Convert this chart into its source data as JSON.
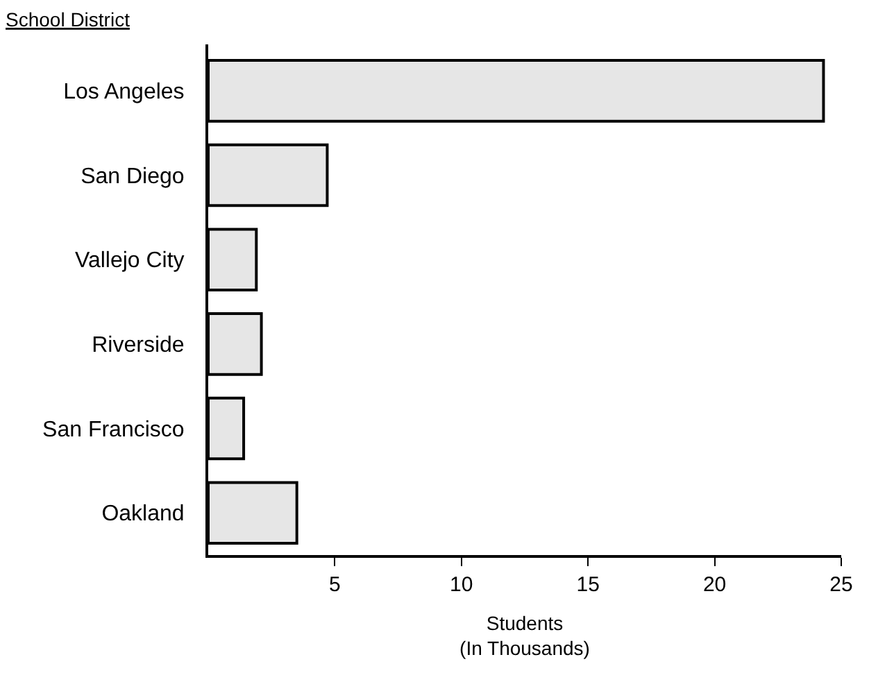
{
  "chart_data": {
    "type": "bar",
    "orientation": "horizontal",
    "ylabel": "School District",
    "xlabel": "Students\n(In Thousands)",
    "categories": [
      "Los Angeles",
      "San Diego",
      "Vallejo City",
      "Riverside",
      "San Francisco",
      "Oakland"
    ],
    "values": [
      24.3,
      4.7,
      1.9,
      2.1,
      1.4,
      3.5
    ],
    "color": "#e6e6e6",
    "xlim": [
      0,
      25
    ],
    "xticks": [
      5,
      10,
      15,
      20,
      25
    ],
    "legend": false
  }
}
